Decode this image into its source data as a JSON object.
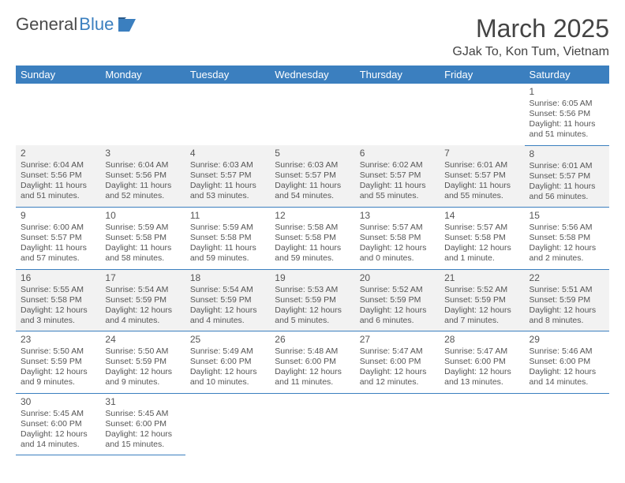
{
  "logo": {
    "text1": "General",
    "text2": "Blue"
  },
  "title": "March 2025",
  "location": "GJak To, Kon Tum, Vietnam",
  "weekdays": [
    "Sunday",
    "Monday",
    "Tuesday",
    "Wednesday",
    "Thursday",
    "Friday",
    "Saturday"
  ],
  "header_bg": "#3b7fbf",
  "shaded_bg": "#f2f2f2",
  "border_color": "#3b7fbf",
  "weeks": [
    [
      null,
      null,
      null,
      null,
      null,
      null,
      {
        "n": "1",
        "sr": "6:05 AM",
        "ss": "5:56 PM",
        "dl": "11 hours and 51 minutes."
      }
    ],
    [
      {
        "n": "2",
        "sr": "6:04 AM",
        "ss": "5:56 PM",
        "dl": "11 hours and 51 minutes.",
        "shaded": true
      },
      {
        "n": "3",
        "sr": "6:04 AM",
        "ss": "5:56 PM",
        "dl": "11 hours and 52 minutes.",
        "shaded": true
      },
      {
        "n": "4",
        "sr": "6:03 AM",
        "ss": "5:57 PM",
        "dl": "11 hours and 53 minutes.",
        "shaded": true
      },
      {
        "n": "5",
        "sr": "6:03 AM",
        "ss": "5:57 PM",
        "dl": "11 hours and 54 minutes.",
        "shaded": true
      },
      {
        "n": "6",
        "sr": "6:02 AM",
        "ss": "5:57 PM",
        "dl": "11 hours and 55 minutes.",
        "shaded": true
      },
      {
        "n": "7",
        "sr": "6:01 AM",
        "ss": "5:57 PM",
        "dl": "11 hours and 55 minutes.",
        "shaded": true
      },
      {
        "n": "8",
        "sr": "6:01 AM",
        "ss": "5:57 PM",
        "dl": "11 hours and 56 minutes.",
        "shaded": true
      }
    ],
    [
      {
        "n": "9",
        "sr": "6:00 AM",
        "ss": "5:57 PM",
        "dl": "11 hours and 57 minutes."
      },
      {
        "n": "10",
        "sr": "5:59 AM",
        "ss": "5:58 PM",
        "dl": "11 hours and 58 minutes."
      },
      {
        "n": "11",
        "sr": "5:59 AM",
        "ss": "5:58 PM",
        "dl": "11 hours and 59 minutes."
      },
      {
        "n": "12",
        "sr": "5:58 AM",
        "ss": "5:58 PM",
        "dl": "11 hours and 59 minutes."
      },
      {
        "n": "13",
        "sr": "5:57 AM",
        "ss": "5:58 PM",
        "dl": "12 hours and 0 minutes."
      },
      {
        "n": "14",
        "sr": "5:57 AM",
        "ss": "5:58 PM",
        "dl": "12 hours and 1 minute."
      },
      {
        "n": "15",
        "sr": "5:56 AM",
        "ss": "5:58 PM",
        "dl": "12 hours and 2 minutes."
      }
    ],
    [
      {
        "n": "16",
        "sr": "5:55 AM",
        "ss": "5:58 PM",
        "dl": "12 hours and 3 minutes.",
        "shaded": true
      },
      {
        "n": "17",
        "sr": "5:54 AM",
        "ss": "5:59 PM",
        "dl": "12 hours and 4 minutes.",
        "shaded": true
      },
      {
        "n": "18",
        "sr": "5:54 AM",
        "ss": "5:59 PM",
        "dl": "12 hours and 4 minutes.",
        "shaded": true
      },
      {
        "n": "19",
        "sr": "5:53 AM",
        "ss": "5:59 PM",
        "dl": "12 hours and 5 minutes.",
        "shaded": true
      },
      {
        "n": "20",
        "sr": "5:52 AM",
        "ss": "5:59 PM",
        "dl": "12 hours and 6 minutes.",
        "shaded": true
      },
      {
        "n": "21",
        "sr": "5:52 AM",
        "ss": "5:59 PM",
        "dl": "12 hours and 7 minutes.",
        "shaded": true
      },
      {
        "n": "22",
        "sr": "5:51 AM",
        "ss": "5:59 PM",
        "dl": "12 hours and 8 minutes.",
        "shaded": true
      }
    ],
    [
      {
        "n": "23",
        "sr": "5:50 AM",
        "ss": "5:59 PM",
        "dl": "12 hours and 9 minutes."
      },
      {
        "n": "24",
        "sr": "5:50 AM",
        "ss": "5:59 PM",
        "dl": "12 hours and 9 minutes."
      },
      {
        "n": "25",
        "sr": "5:49 AM",
        "ss": "6:00 PM",
        "dl": "12 hours and 10 minutes."
      },
      {
        "n": "26",
        "sr": "5:48 AM",
        "ss": "6:00 PM",
        "dl": "12 hours and 11 minutes."
      },
      {
        "n": "27",
        "sr": "5:47 AM",
        "ss": "6:00 PM",
        "dl": "12 hours and 12 minutes."
      },
      {
        "n": "28",
        "sr": "5:47 AM",
        "ss": "6:00 PM",
        "dl": "12 hours and 13 minutes."
      },
      {
        "n": "29",
        "sr": "5:46 AM",
        "ss": "6:00 PM",
        "dl": "12 hours and 14 minutes."
      }
    ],
    [
      {
        "n": "30",
        "sr": "5:45 AM",
        "ss": "6:00 PM",
        "dl": "12 hours and 14 minutes."
      },
      {
        "n": "31",
        "sr": "5:45 AM",
        "ss": "6:00 PM",
        "dl": "12 hours and 15 minutes."
      },
      null,
      null,
      null,
      null,
      null
    ]
  ],
  "labels": {
    "sunrise": "Sunrise: ",
    "sunset": "Sunset: ",
    "daylight": "Daylight: "
  }
}
